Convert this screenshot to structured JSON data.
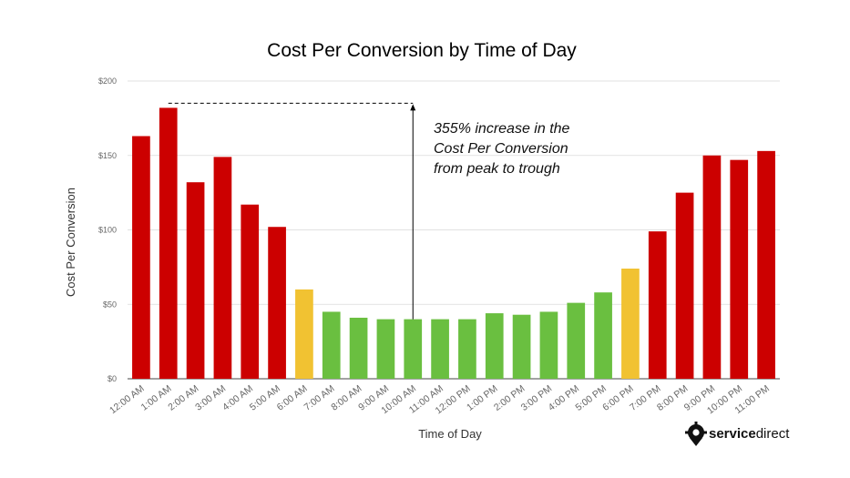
{
  "chart_data": {
    "type": "bar",
    "title": "Cost Per Conversion by Time of Day",
    "xlabel": "Time of Day",
    "ylabel": "Cost Per Conversion",
    "ylim": [
      0,
      200
    ],
    "yticks": [
      {
        "value": 0,
        "label": "$0"
      },
      {
        "value": 50,
        "label": "$50"
      },
      {
        "value": 100,
        "label": "$100"
      },
      {
        "value": 150,
        "label": "$150"
      },
      {
        "value": 200,
        "label": "$200"
      }
    ],
    "grid": true,
    "legend": "none",
    "categories": [
      "12:00 AM",
      "1:00 AM",
      "2:00 AM",
      "3:00 AM",
      "4:00 AM",
      "5:00 AM",
      "6:00 AM",
      "7:00 AM",
      "8:00 AM",
      "9:00 AM",
      "10:00 AM",
      "11:00 AM",
      "12:00 PM",
      "1:00 PM",
      "2:00 PM",
      "3:00 PM",
      "4:00 PM",
      "5:00 PM",
      "6:00 PM",
      "7:00 PM",
      "8:00 PM",
      "9:00 PM",
      "10:00 PM",
      "11:00 PM"
    ],
    "values": [
      163,
      182,
      132,
      149,
      117,
      102,
      60,
      45,
      41,
      40,
      40,
      40,
      40,
      44,
      43,
      45,
      51,
      58,
      74,
      99,
      125,
      150,
      147,
      153
    ],
    "bar_colors": [
      "#cc0000",
      "#cc0000",
      "#cc0000",
      "#cc0000",
      "#cc0000",
      "#cc0000",
      "#f1c232",
      "#6abf40",
      "#6abf40",
      "#6abf40",
      "#6abf40",
      "#6abf40",
      "#6abf40",
      "#6abf40",
      "#6abf40",
      "#6abf40",
      "#6abf40",
      "#6abf40",
      "#f1c232",
      "#cc0000",
      "#cc0000",
      "#cc0000",
      "#cc0000",
      "#cc0000"
    ],
    "annotation": {
      "lines": [
        "355% increase in the",
        "Cost Per Conversion",
        "from peak to trough"
      ],
      "peak_category": "1:00 AM",
      "peak_value": 182,
      "trough_category": "10:00 AM",
      "trough_value": 40
    }
  },
  "logo": {
    "text_bold": "service",
    "text_regular": "direct",
    "icon": "gear-pin-icon"
  }
}
